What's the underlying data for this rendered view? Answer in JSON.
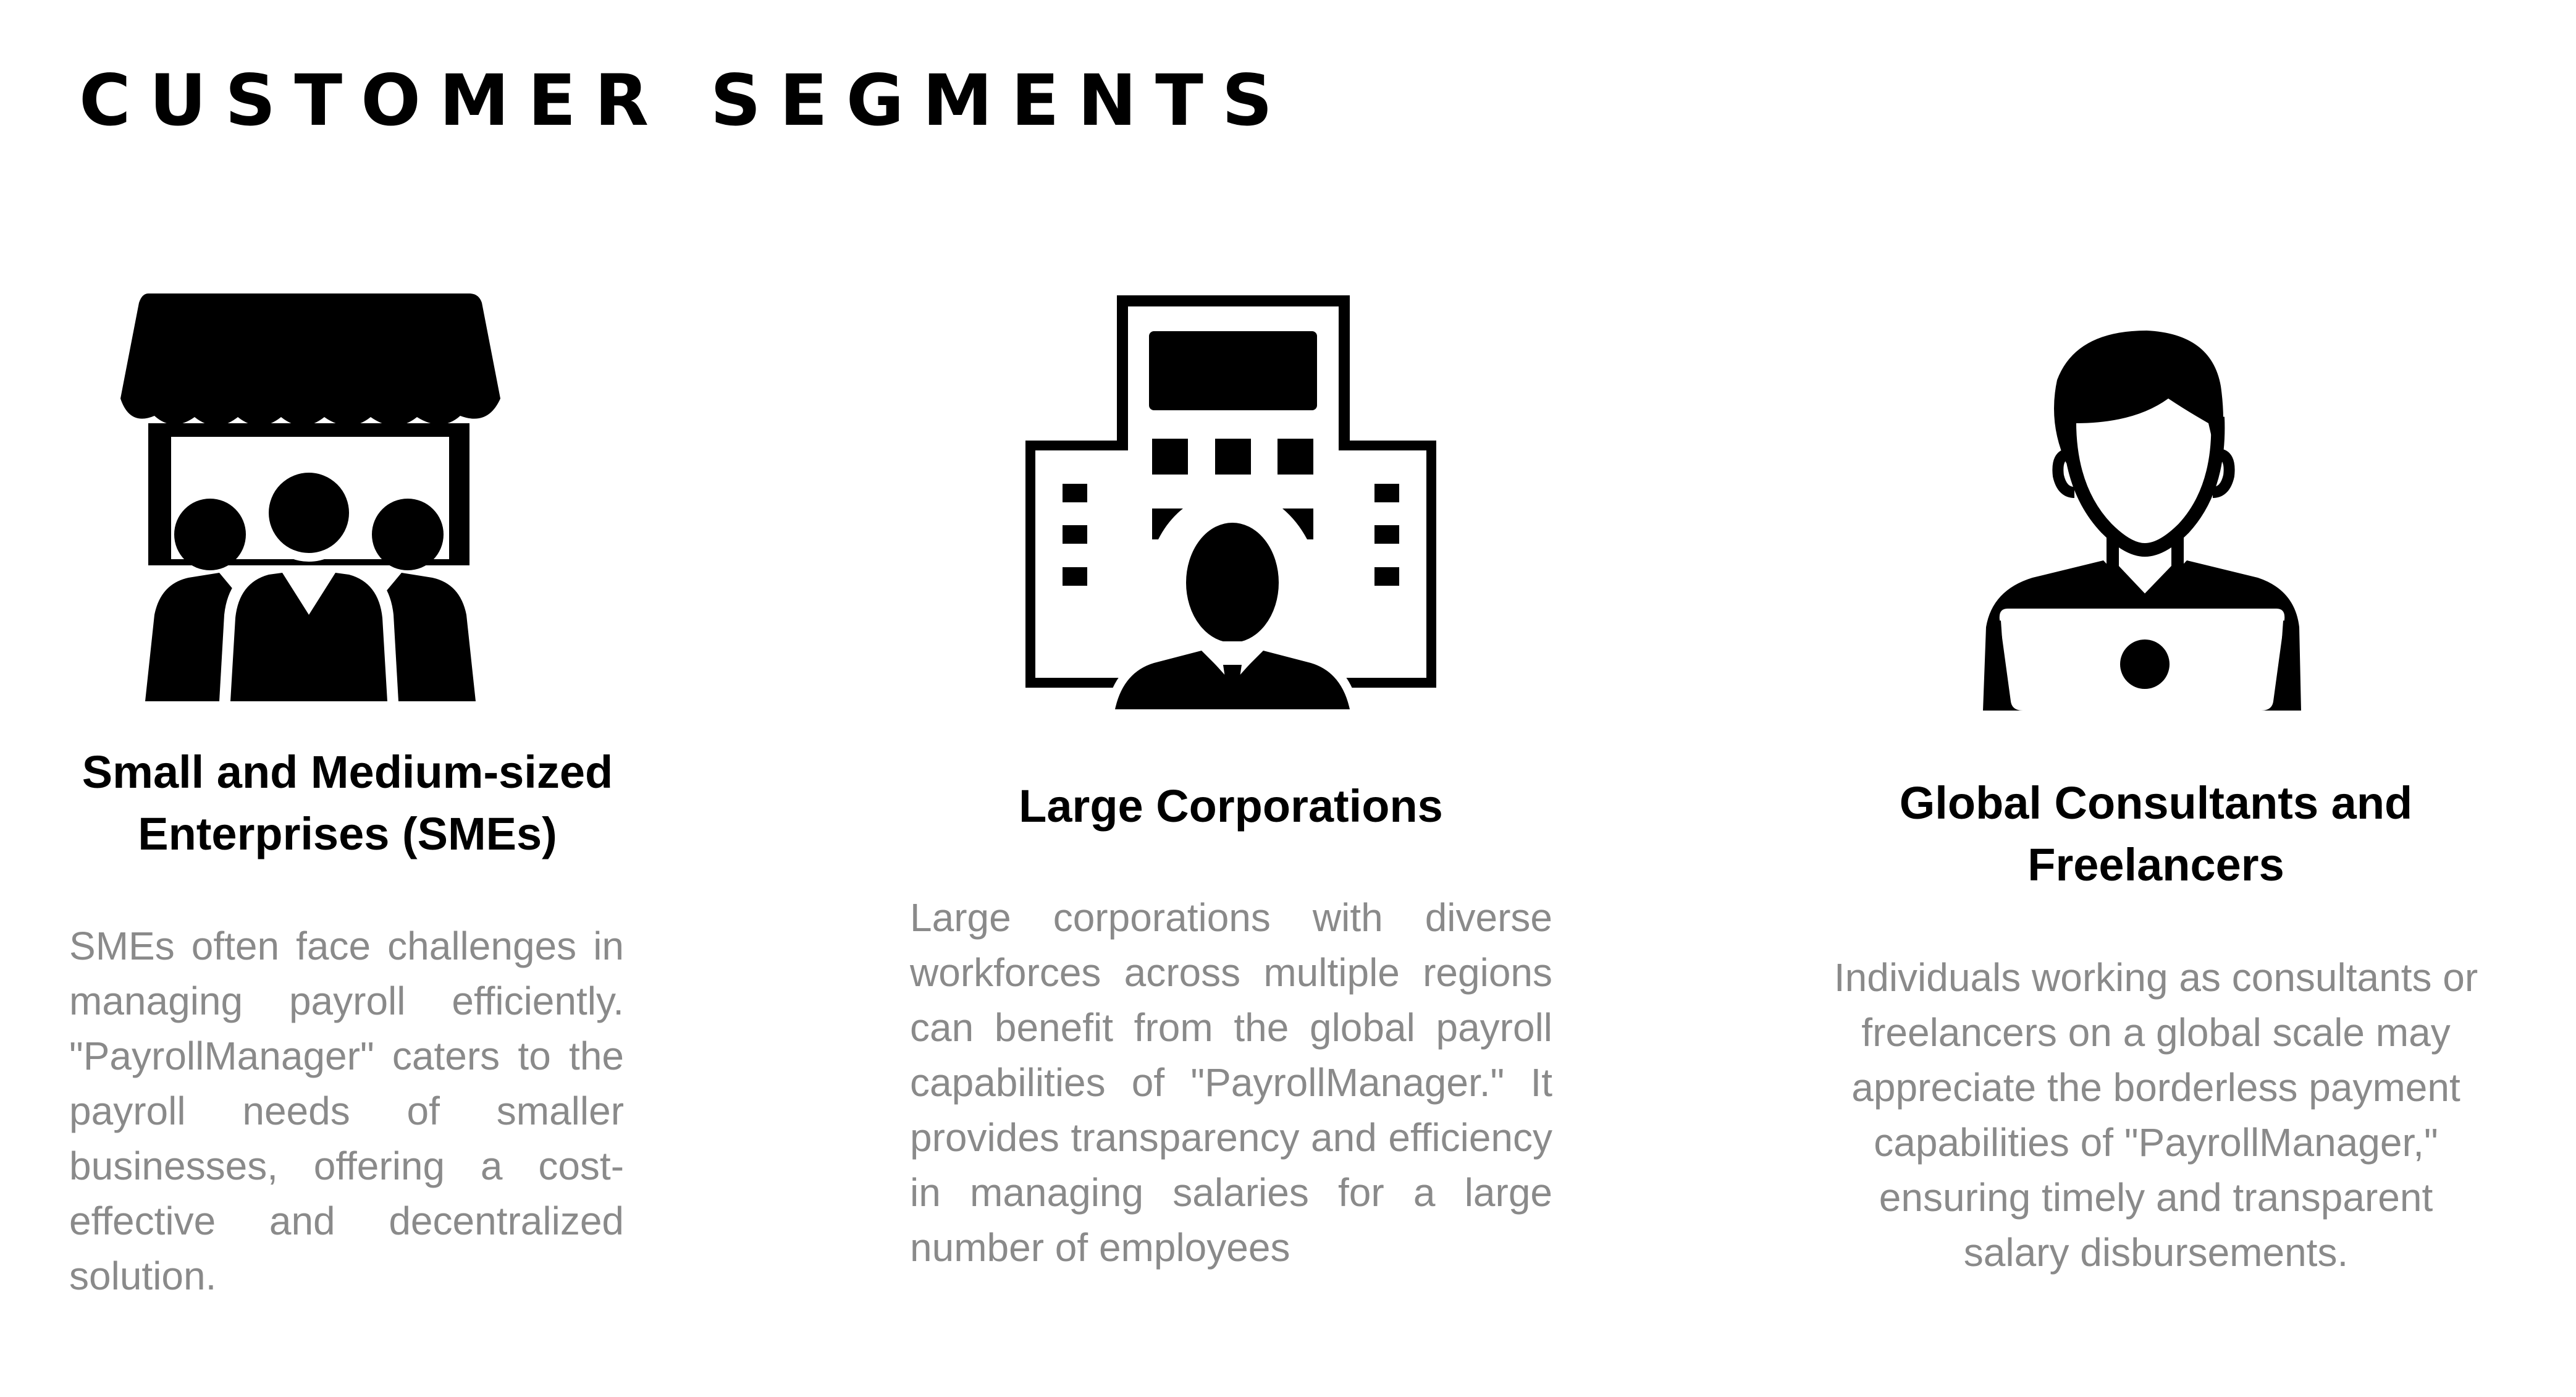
{
  "slide": {
    "title": "Customer Segments"
  },
  "segments": [
    {
      "icon": "storefront-people-icon",
      "title": "Small and Medium-sized Enterprises (SMEs)",
      "description": "SMEs often face challenges in managing payroll efficiently. \"PayrollManager\" caters to the payroll needs of smaller businesses, offering a cost-effective and decentralized solution."
    },
    {
      "icon": "office-building-businessman-icon",
      "title": "Large Corporations",
      "description": "Large corporations with diverse workforces across multiple regions can benefit from the global payroll capabilities of \"PayrollManager.\" It provides transparency and efficiency in managing salaries for a large number of employees"
    },
    {
      "icon": "person-laptop-icon",
      "title": "Global Consultants and Freelancers",
      "description": "Individuals working as consultants or freelancers on a global scale may appreciate the borderless payment capabilities of \"PayrollManager,\" ensuring timely and transparent salary disbursements."
    }
  ]
}
